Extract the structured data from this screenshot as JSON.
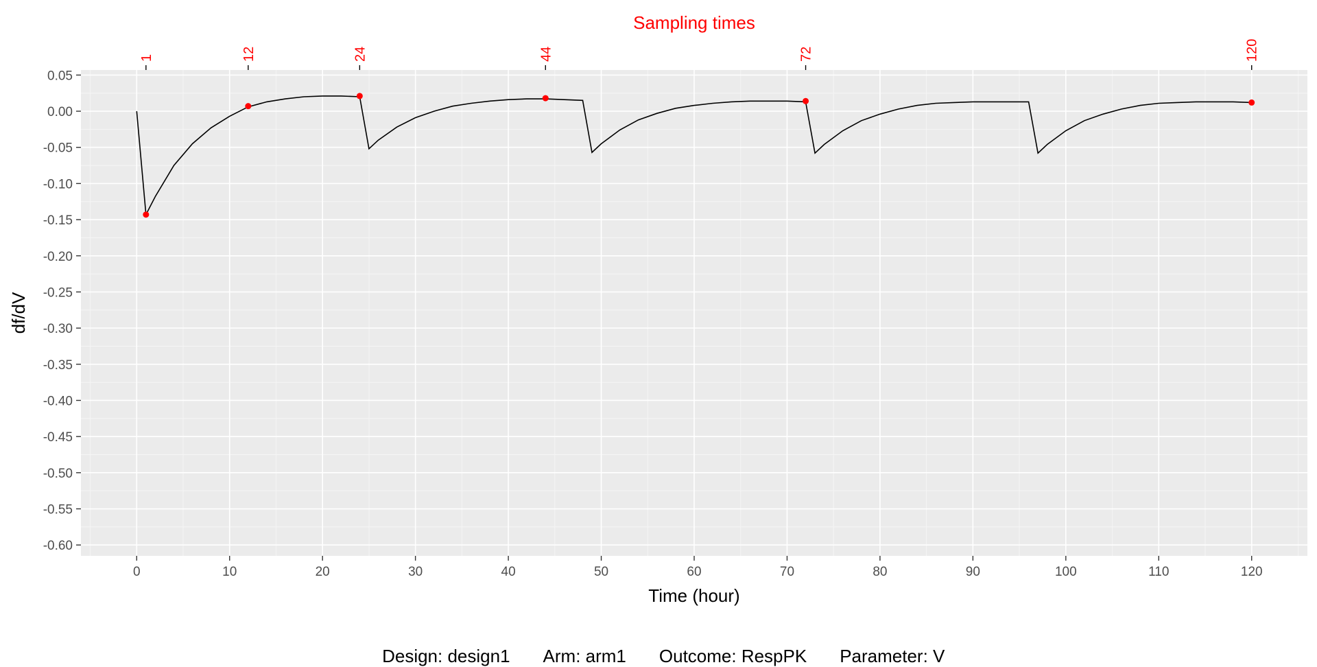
{
  "chart_data": {
    "type": "line",
    "xlabel": "Time (hour)",
    "ylabel": "df/dV",
    "xlim": [
      -6,
      126
    ],
    "ylim": [
      -0.615,
      0.057
    ],
    "x_ticks": [
      0,
      10,
      20,
      30,
      40,
      50,
      60,
      70,
      80,
      90,
      100,
      110,
      120
    ],
    "y_ticks": [
      0.05,
      0.0,
      -0.05,
      -0.1,
      -0.15,
      -0.2,
      -0.25,
      -0.3,
      -0.35,
      -0.4,
      -0.45,
      -0.5,
      -0.55,
      -0.6
    ],
    "y_tick_labels": [
      "0.05",
      "0.00",
      "-0.05",
      "-0.10",
      "-0.15",
      "-0.20",
      "-0.25",
      "-0.30",
      "-0.35",
      "-0.40",
      "-0.45",
      "-0.50",
      "-0.55",
      "-0.60"
    ],
    "grid": true,
    "series": [
      {
        "color": "#000000",
        "x": [
          0,
          1,
          2,
          4,
          6,
          8,
          10,
          12,
          14,
          16,
          18,
          20,
          22,
          24,
          25,
          26,
          28,
          30,
          32,
          34,
          36,
          38,
          40,
          42,
          44,
          46,
          48,
          49,
          50,
          52,
          54,
          56,
          58,
          60,
          62,
          64,
          66,
          68,
          70,
          72,
          73,
          74,
          76,
          78,
          80,
          82,
          84,
          86,
          88,
          90,
          92,
          94,
          96,
          97,
          98,
          100,
          102,
          104,
          106,
          108,
          110,
          112,
          114,
          116,
          118,
          120
        ],
        "y": [
          0.0,
          -0.143,
          -0.118,
          -0.075,
          -0.045,
          -0.023,
          -0.007,
          0.006,
          0.013,
          0.017,
          0.02,
          0.021,
          0.021,
          0.02,
          -0.052,
          -0.04,
          -0.022,
          -0.009,
          0.0,
          0.007,
          0.011,
          0.014,
          0.016,
          0.017,
          0.017,
          0.016,
          0.015,
          -0.057,
          -0.045,
          -0.026,
          -0.012,
          -0.003,
          0.004,
          0.008,
          0.011,
          0.013,
          0.014,
          0.014,
          0.014,
          0.013,
          -0.058,
          -0.046,
          -0.027,
          -0.013,
          -0.004,
          0.003,
          0.008,
          0.011,
          0.012,
          0.013,
          0.013,
          0.013,
          0.013,
          -0.058,
          -0.046,
          -0.027,
          -0.013,
          -0.004,
          0.003,
          0.008,
          0.011,
          0.012,
          0.013,
          0.013,
          0.013,
          0.012
        ]
      },
      {
        "type": "scatter",
        "color": "#ff0000",
        "x": [
          1,
          12,
          24,
          44,
          72,
          120
        ],
        "y": [
          -0.143,
          0.007,
          0.021,
          0.018,
          0.014,
          0.012
        ]
      }
    ],
    "top_axis": {
      "title": "Sampling times",
      "ticks": [
        1,
        12,
        24,
        44,
        72,
        120
      ],
      "tick_labels": [
        "1",
        "12",
        "24",
        "44",
        "72",
        "120"
      ],
      "color": "#ff0000"
    },
    "caption": {
      "design": "Design: design1",
      "arm": "Arm: arm1",
      "outcome": "Outcome: RespPK",
      "parameter": "Parameter: V"
    },
    "colors": {
      "panel_bg": "#ebebeb",
      "grid_major": "#ffffff",
      "grid_minor": "#f5f5f5",
      "line": "#000000",
      "points": "#ff0000",
      "tick_text": "#4d4d4d"
    }
  }
}
